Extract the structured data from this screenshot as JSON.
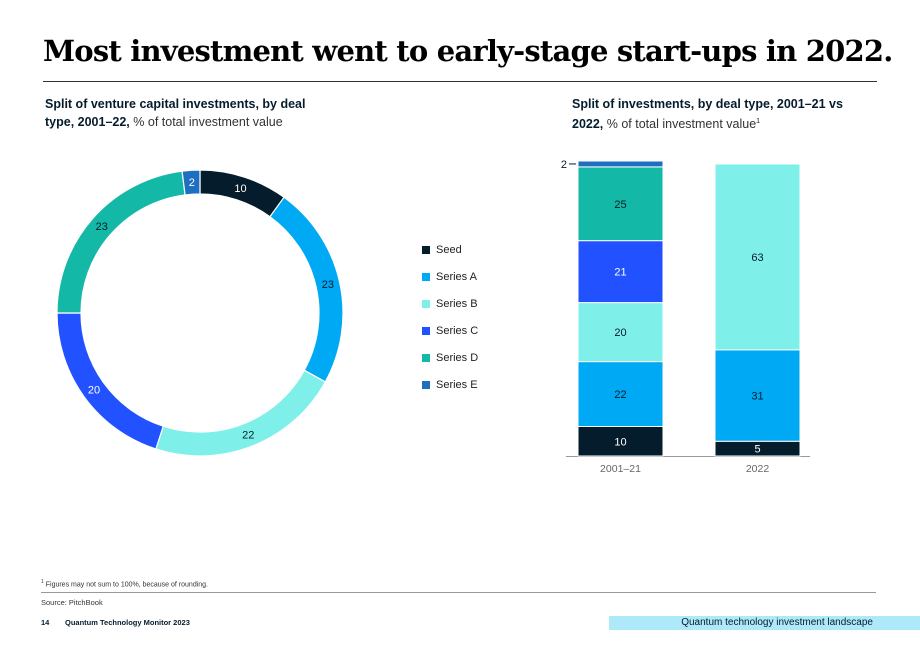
{
  "page": {
    "title": "Most investment went to early-stage start-ups in 2022.",
    "footnote_mark": "1",
    "footnote": "Figures may not sum to 100%, because of rounding.",
    "source": "Source: PitchBook",
    "page_number": "14",
    "report_name": "Quantum Technology Monitor 2023",
    "section_label": "Quantum technology investment landscape"
  },
  "left_chart": {
    "subtitle_bold": "Split of venture capital investments, by deal type, 2001–22,",
    "subtitle_unit": "% of total investment value"
  },
  "right_chart": {
    "subtitle_bold": "Split of investments, by deal type, 2001–21 vs 2022,",
    "subtitle_unit": "% of total investment value",
    "subtitle_sup": "1"
  },
  "legend": [
    {
      "label": "Seed",
      "color": "#051c2c"
    },
    {
      "label": "Series A",
      "color": "#00a9f4"
    },
    {
      "label": "Series B",
      "color": "#7ff0e9"
    },
    {
      "label": "Series C",
      "color": "#2251ff"
    },
    {
      "label": "Series D",
      "color": "#14b8a6"
    },
    {
      "label": "Series E",
      "color": "#1f6fc0"
    }
  ],
  "chart_data": [
    {
      "type": "pie",
      "variant": "donut",
      "title": "Split of venture capital investments, by deal type, 2001–22",
      "unit": "% of total investment value",
      "categories": [
        "Seed",
        "Series A",
        "Series B",
        "Series C",
        "Series D",
        "Series E"
      ],
      "values": [
        10,
        23,
        22,
        20,
        23,
        2
      ],
      "colors": [
        "#051c2c",
        "#00a9f4",
        "#7ff0e9",
        "#2251ff",
        "#14b8a6",
        "#1f6fc0"
      ],
      "legend_position": "right"
    },
    {
      "type": "bar",
      "stacked": true,
      "title": "Split of investments, by deal type, 2001–21 vs 2022",
      "unit": "% of total investment value",
      "categories": [
        "2001–21",
        "2022"
      ],
      "series": [
        {
          "name": "Seed",
          "values": [
            10,
            5
          ],
          "color": "#051c2c"
        },
        {
          "name": "Series A",
          "values": [
            22,
            31
          ],
          "color": "#00a9f4"
        },
        {
          "name": "Series B",
          "values": [
            20,
            63
          ],
          "color": "#7ff0e9"
        },
        {
          "name": "Series C",
          "values": [
            21,
            0
          ],
          "color": "#2251ff"
        },
        {
          "name": "Series D",
          "values": [
            25,
            0
          ],
          "color": "#14b8a6"
        },
        {
          "name": "Series E",
          "values": [
            2,
            0
          ],
          "color": "#1f6fc0"
        }
      ],
      "ylim": [
        0,
        100
      ]
    }
  ]
}
